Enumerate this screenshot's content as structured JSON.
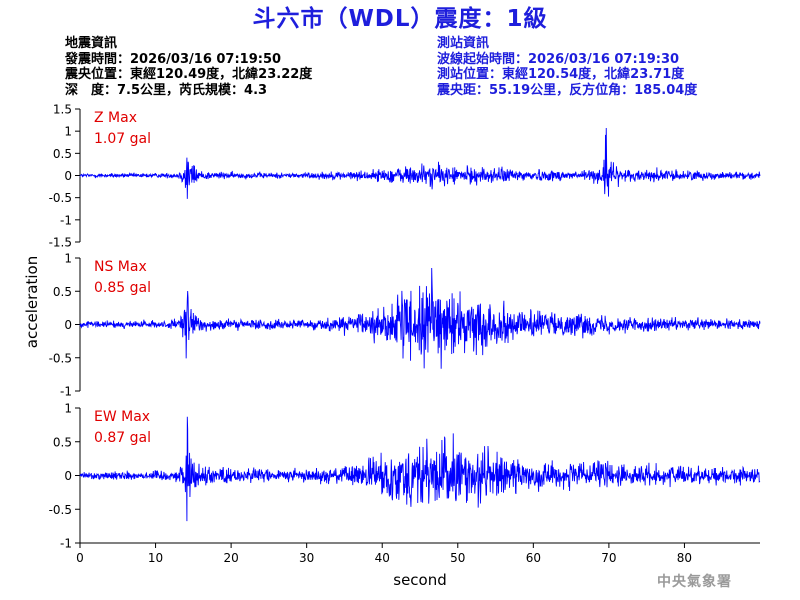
{
  "title": "斗六市（WDL）震度：1級",
  "quake_info": {
    "heading": "地震資訊",
    "origin_time": "發震時間：2026/03/16 07:19:50",
    "epicenter": "震央位置：東經120.49度，北緯23.22度",
    "depth_magnitude": "深　度：7.5公里，芮氏規模：4.3"
  },
  "station_info": {
    "heading": "測站資訊",
    "wave_start": "波線起始時間：2026/03/16 07:19:30",
    "location": "測站位置：東經120.54度，北緯23.71度",
    "distance_azimuth": "震央距：55.19公里，反方位角：185.04度"
  },
  "agency": "中央氣象署",
  "colors": {
    "title": "#1e1edc",
    "station_info": "#1e1edc",
    "trace": "#0000ff",
    "max_label": "#e00000",
    "agency": "#9a9a9a"
  },
  "chart_data": {
    "type": "line",
    "xlabel": "second",
    "ylabel": "acceleration",
    "xlim": [
      0,
      90
    ],
    "xticks": [
      0,
      10,
      20,
      30,
      40,
      50,
      60,
      70,
      80
    ],
    "grid": false,
    "panels": [
      {
        "name": "Z",
        "max_label": "Z Max",
        "max_value": "1.07 gal",
        "ylim": [
          -1.5,
          1.5
        ],
        "yticks": [
          -1.5,
          -1,
          -0.5,
          0,
          0.5,
          1,
          1.5
        ],
        "ytick_labels": [
          "-1.5",
          "-1",
          "-0.5",
          "0",
          "0.5",
          "1",
          "1.5"
        ],
        "envelope": [
          [
            0,
            0.05
          ],
          [
            13,
            0.06
          ],
          [
            13.8,
            0.25
          ],
          [
            14.1,
            1.0
          ],
          [
            14.5,
            0.4
          ],
          [
            16,
            0.12
          ],
          [
            20,
            0.08
          ],
          [
            28,
            0.07
          ],
          [
            33,
            0.1
          ],
          [
            38,
            0.12
          ],
          [
            42,
            0.22
          ],
          [
            46,
            0.3
          ],
          [
            50,
            0.22
          ],
          [
            55,
            0.2
          ],
          [
            60,
            0.15
          ],
          [
            65,
            0.13
          ],
          [
            69,
            0.18
          ],
          [
            69.6,
            1.07
          ],
          [
            70,
            0.35
          ],
          [
            72,
            0.18
          ],
          [
            80,
            0.12
          ],
          [
            90,
            0.09
          ]
        ]
      },
      {
        "name": "NS",
        "max_label": "NS Max",
        "max_value": "0.85 gal",
        "ylim": [
          -1,
          1
        ],
        "yticks": [
          -1,
          -0.5,
          0,
          0.5,
          1
        ],
        "ytick_labels": [
          "-1",
          "-0.5",
          "0",
          "0.5",
          "1"
        ],
        "envelope": [
          [
            0,
            0.05
          ],
          [
            13,
            0.07
          ],
          [
            13.8,
            0.3
          ],
          [
            14.2,
            0.78
          ],
          [
            14.6,
            0.3
          ],
          [
            16,
            0.12
          ],
          [
            20,
            0.09
          ],
          [
            28,
            0.08
          ],
          [
            33,
            0.1
          ],
          [
            38,
            0.2
          ],
          [
            42,
            0.45
          ],
          [
            45,
            0.6
          ],
          [
            46.5,
            0.85
          ],
          [
            48,
            0.55
          ],
          [
            52,
            0.45
          ],
          [
            56,
            0.32
          ],
          [
            60,
            0.22
          ],
          [
            65,
            0.2
          ],
          [
            70,
            0.15
          ],
          [
            75,
            0.12
          ],
          [
            80,
            0.1
          ],
          [
            90,
            0.08
          ]
        ]
      },
      {
        "name": "EW",
        "max_label": "EW Max",
        "max_value": "0.87 gal",
        "ylim": [
          -1,
          1
        ],
        "yticks": [
          -1,
          -0.5,
          0,
          0.5,
          1
        ],
        "ytick_labels": [
          "-1",
          "-0.5",
          "0",
          "0.5",
          "1"
        ],
        "envelope": [
          [
            0,
            0.06
          ],
          [
            13,
            0.09
          ],
          [
            13.8,
            0.35
          ],
          [
            14.2,
            0.87
          ],
          [
            14.7,
            0.35
          ],
          [
            16,
            0.18
          ],
          [
            20,
            0.13
          ],
          [
            28,
            0.1
          ],
          [
            33,
            0.12
          ],
          [
            38,
            0.22
          ],
          [
            42,
            0.5
          ],
          [
            45,
            0.62
          ],
          [
            48,
            0.55
          ],
          [
            50,
            0.52
          ],
          [
            53,
            0.5
          ],
          [
            56,
            0.32
          ],
          [
            60,
            0.25
          ],
          [
            65,
            0.2
          ],
          [
            69,
            0.22
          ],
          [
            69.5,
            0.32
          ],
          [
            72,
            0.18
          ],
          [
            80,
            0.15
          ],
          [
            90,
            0.12
          ]
        ]
      }
    ]
  }
}
